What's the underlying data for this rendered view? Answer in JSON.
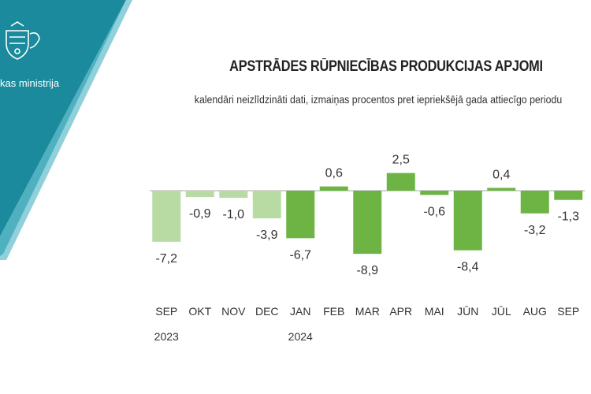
{
  "header": {
    "ministry_name": "kas ministrija"
  },
  "colors": {
    "banner_dark": "#1a8a9c",
    "banner_light": "#6fc2cf",
    "bar_2023": "#b7dba3",
    "bar_2024": "#6db444",
    "baseline": "#aaaaaa"
  },
  "chart_data": {
    "type": "bar",
    "title": "APSTRĀDES RŪPNIECĪBAS PRODUKCIJAS APJOMI",
    "subtitle": "kalendāri neizlīdzināti dati, izmaiņas procentos pret iepriekšējā gada attiecīgo periodu",
    "categories": [
      "SEP",
      "OKT",
      "NOV",
      "DEC",
      "JAN",
      "FEB",
      "MAR",
      "APR",
      "MAI",
      "JŪN",
      "JŪL",
      "AUG",
      "SEP"
    ],
    "year_labels": [
      "2023",
      "",
      "",
      "",
      "2024",
      "",
      "",
      "",
      "",
      "",
      "",
      "",
      ""
    ],
    "values": [
      -7.2,
      -0.9,
      -1.0,
      -3.9,
      -6.7,
      0.6,
      -8.9,
      2.5,
      -0.6,
      -8.4,
      0.4,
      -3.2,
      -1.3
    ],
    "value_labels": [
      "-7,2",
      "-0,9",
      "-1,0",
      "-3,9",
      "-6,7",
      "0,6",
      "-8,9",
      "2,5",
      "-0,6",
      "-8,4",
      "0,4",
      "-3,2",
      "-1,3"
    ],
    "series_year": [
      "2023",
      "2023",
      "2023",
      "2023",
      "2024",
      "2024",
      "2024",
      "2024",
      "2024",
      "2024",
      "2024",
      "2024",
      "2024"
    ],
    "legend": "none",
    "grid": false
  }
}
